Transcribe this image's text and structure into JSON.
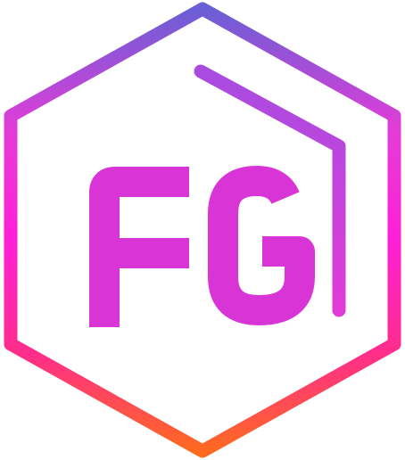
{
  "logo": {
    "monogram": "FG",
    "colors": {
      "hex_top": "#6a5fd6",
      "hex_mid": "#e53bd8",
      "hex_bright": "#ff1fd8",
      "hex_low": "#ff2d8a",
      "hex_bottom": "#ff6a1f",
      "letters": "#d935d6",
      "roof_top": "#a84ce0",
      "roof_bottom": "#e03bd8"
    }
  }
}
